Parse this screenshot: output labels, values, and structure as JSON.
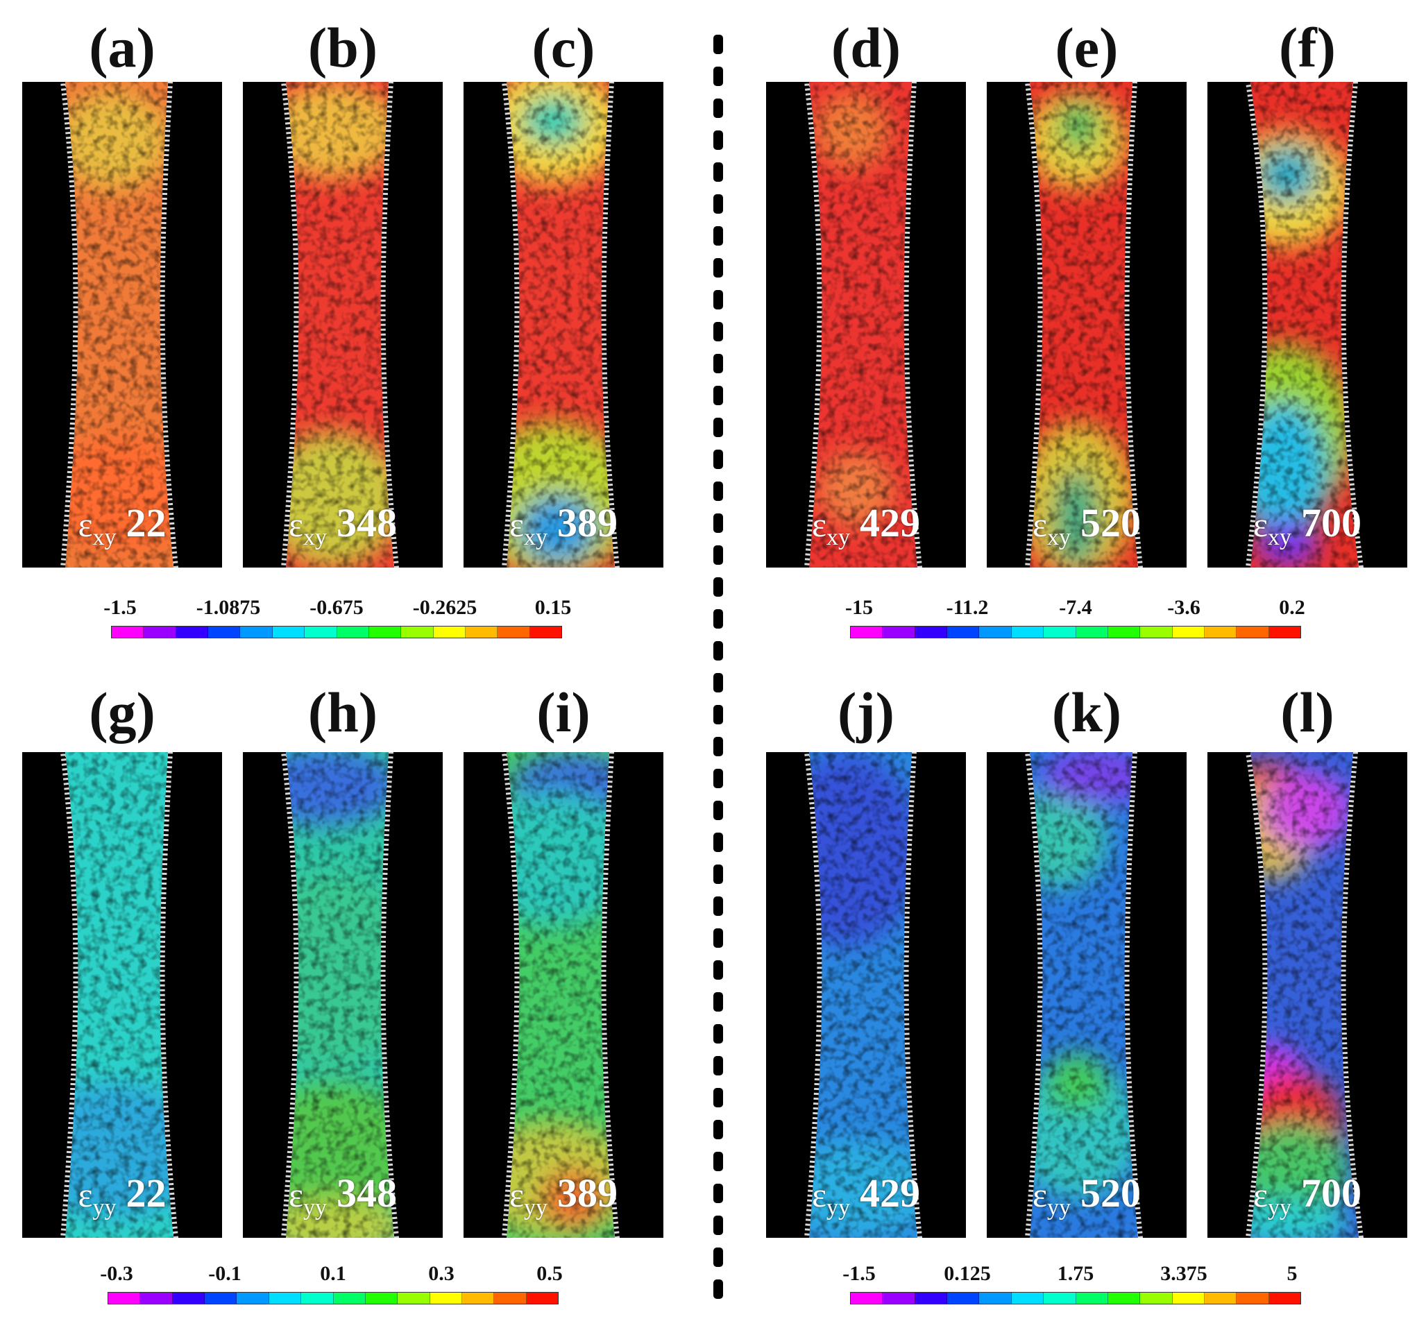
{
  "panels": [
    {
      "id": "a",
      "label": "(a)",
      "sub": "xy",
      "step": "22",
      "style": "xy1"
    },
    {
      "id": "b",
      "label": "(b)",
      "sub": "xy",
      "step": "348",
      "style": "xy2"
    },
    {
      "id": "c",
      "label": "(c)",
      "sub": "xy",
      "step": "389",
      "style": "xy3"
    },
    {
      "id": "d",
      "label": "(d)",
      "sub": "xy",
      "step": "429",
      "style": "xy4"
    },
    {
      "id": "e",
      "label": "(e)",
      "sub": "xy",
      "step": "520",
      "style": "xy5"
    },
    {
      "id": "f",
      "label": "(f)",
      "sub": "xy",
      "step": "700",
      "style": "xy6"
    },
    {
      "id": "g",
      "label": "(g)",
      "sub": "yy",
      "step": "22",
      "style": "yy1"
    },
    {
      "id": "h",
      "label": "(h)",
      "sub": "yy",
      "step": "348",
      "style": "yy2"
    },
    {
      "id": "i",
      "label": "(i)",
      "sub": "yy",
      "step": "389",
      "style": "yy3"
    },
    {
      "id": "j",
      "label": "(j)",
      "sub": "yy",
      "step": "429",
      "style": "yy4"
    },
    {
      "id": "k",
      "label": "(k)",
      "sub": "yy",
      "step": "520",
      "style": "yy5"
    },
    {
      "id": "l",
      "label": "(l)",
      "sub": "yy",
      "step": "700",
      "style": "yy6"
    }
  ],
  "strain_symbol": "ε",
  "colorbars": [
    {
      "id": "xy-left",
      "ticks": [
        "-1.5",
        "-1.0875",
        "-0.675",
        "-0.2625",
        "0.15"
      ]
    },
    {
      "id": "xy-right",
      "ticks": [
        "-15",
        "-11.2",
        "-7.4",
        "-3.6",
        "0.2"
      ]
    },
    {
      "id": "yy-left",
      "ticks": [
        "-0.3",
        "-0.1",
        "0.1",
        "0.3",
        "0.5"
      ]
    },
    {
      "id": "yy-right",
      "ticks": [
        "-1.5",
        "0.125",
        "1.75",
        "3.375",
        "5"
      ]
    }
  ],
  "colormap": [
    "#ff00ff",
    "#9900ff",
    "#3300ff",
    "#0044ff",
    "#0099ff",
    "#00ddff",
    "#00ffcc",
    "#00ff66",
    "#22ff00",
    "#99ff00",
    "#ffff00",
    "#ffbb00",
    "#ff6600",
    "#ff1100"
  ]
}
